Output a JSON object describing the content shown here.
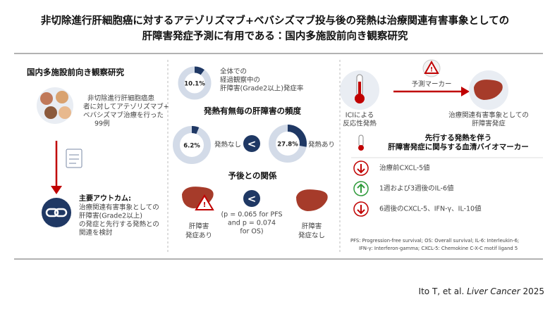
{
  "title": {
    "lines": [
      "非切除進行肝細胞癌に対するアテゾリズマブ+ベバシズマブ投与後の発熱は治療関連有害事象としての",
      "肝障害発症予測に有用である：国内多施設前向き観察研究"
    ]
  },
  "left": {
    "heading": "国内多施設前向き観察研究",
    "patients": [
      "非切除進行肝細胞癌患",
      "者に対してアテゾリズマブ+",
      "ベバシズマブ治療を行った",
      "99例"
    ],
    "outcome_heading": "主要アウトカム:",
    "outcome": [
      "治療関連有害事象としての",
      "肝障害(Grade2以上)",
      "の発症と先行する発熱との",
      "関連を検討"
    ]
  },
  "middle": {
    "overall": {
      "rate": {
        "value": 10.1,
        "label": "10.1%"
      },
      "text": [
        "全体での",
        "経過観察中の",
        "肝障害(Grade2以上)発症率"
      ]
    },
    "fever_heading": "発熱有無毎の肝障害の頻度",
    "no_fever": {
      "rate": {
        "value": 6.2,
        "label": "6.2%"
      },
      "label": "発熱なし"
    },
    "fever_compare": "<",
    "fever": {
      "rate": {
        "value": 27.8,
        "label": "27.8%"
      },
      "label": "発熱あり"
    },
    "prognosis_heading": "予後との関係",
    "with_injury": [
      "肝障害",
      "発症あり"
    ],
    "prognosis_compare": "<",
    "p_values": [
      "(p = 0.065 for PFS",
      "and p = 0.074",
      "for OS)"
    ],
    "without_injury": [
      "肝障害",
      "発症なし"
    ]
  },
  "right": {
    "marker_label": "予測マーカー",
    "fever": [
      "ICIによる",
      "反応性発熱"
    ],
    "outcome": [
      "治療関連有害事象としての",
      "肝障害発症"
    ],
    "heading": [
      "先行する発熱を伴う",
      "肝障害発症に関与する血清バイオマーカー"
    ],
    "markers": [
      "治療前CXCL-5値",
      "1週および3週後のIL-6値",
      "6週後のCXCL-5、IFN-γ、IL-10値"
    ],
    "footnote": [
      "PFS: Progression-free survival; OS: Overall survival; IL-6: Interleukin-6;",
      "IFN-γ: Interferon-gamma; CXCL-5: Chemokine C-X-C motif ligand 5"
    ]
  },
  "citation": {
    "authors": "Ito T, et al. ",
    "journal": "Liver Cancer",
    "year": " 2025"
  }
}
